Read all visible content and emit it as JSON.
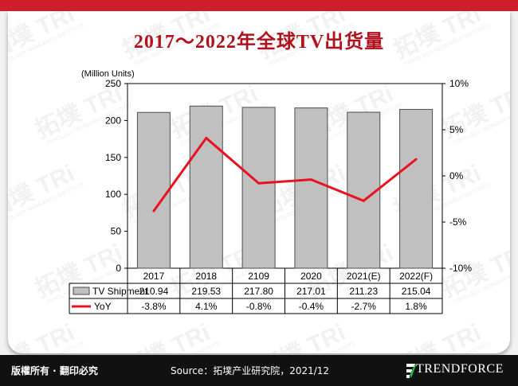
{
  "header": {
    "title": "2017～2022年全球TV出货量"
  },
  "watermark": {
    "brand_cn": "拓墣",
    "brand_en": "TRi",
    "tagline": "TOPOLOGY RESEARCH INSTITUTE"
  },
  "chart_data": {
    "type": "bar",
    "categories": [
      "2017",
      "2018",
      "2109",
      "2020",
      "2021(E)",
      "2022(F)"
    ],
    "series": [
      {
        "name": "TV Shipment",
        "type": "bar",
        "axis": "left",
        "values": [
          210.94,
          219.53,
          217.8,
          217.01,
          211.23,
          215.04
        ],
        "labels": [
          "210.94",
          "219.53",
          "217.80",
          "217.01",
          "211.23",
          "215.04"
        ],
        "color": "#c0c0c0"
      },
      {
        "name": "YoY",
        "type": "line",
        "axis": "right",
        "values": [
          -3.8,
          4.1,
          -0.8,
          -0.4,
          -2.7,
          1.8
        ],
        "labels": [
          "-3.8%",
          "4.1%",
          "-0.8%",
          "-0.4%",
          "-2.7%",
          "1.8%"
        ],
        "color": "#e8131f"
      }
    ],
    "y_left": {
      "label": "(Million Units)",
      "range": [
        0,
        250
      ],
      "ticks": [
        "0",
        "50",
        "100",
        "150",
        "200",
        "250"
      ]
    },
    "y_right": {
      "range": [
        -10,
        10
      ],
      "ticks": [
        "-10%",
        "-5%",
        "0%",
        "5%",
        "10%"
      ]
    },
    "grid": false,
    "legend": "data-table-below"
  },
  "footer": {
    "copyright": "版權所有 · 翻印必究",
    "source": "Source：拓墣产业研究院，2021/12",
    "logo_text": "TRENDFORCE"
  }
}
